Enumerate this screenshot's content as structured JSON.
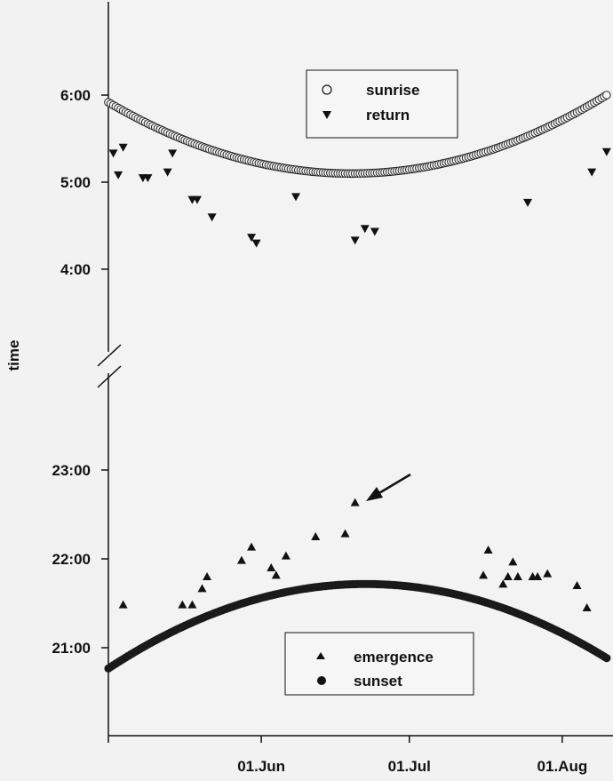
{
  "chart_data": {
    "type": "scatter",
    "ylabel": "time",
    "x_ticks": [
      "01.Jun",
      "01.Jul",
      "01.Aug"
    ],
    "y_ticks_morning": [
      "4:00",
      "5:00",
      "6:00"
    ],
    "y_ticks_evening": [
      "21:00",
      "22:00",
      "23:00"
    ],
    "y_axis_break": true,
    "xlim": [
      "2003-05-01",
      "2003-08-10"
    ],
    "ylim_morning": [
      "3:00",
      "7:00"
    ],
    "ylim_evening": [
      "20:00",
      "24:00"
    ],
    "legends": [
      {
        "position": "top-center",
        "entries": [
          "sunrise",
          "return"
        ]
      },
      {
        "position": "bottom-center",
        "entries": [
          "emergence",
          "sunset"
        ]
      }
    ],
    "annotation": "arrow pointing to emergence point on 2003-06-20",
    "series": [
      {
        "name": "sunrise",
        "marker": "open-circle",
        "curve": true,
        "anchors": [
          {
            "date": "2003-05-01",
            "time": "5:55"
          },
          {
            "date": "2003-06-21",
            "time": "5:06"
          },
          {
            "date": "2003-08-10",
            "time": "6:00"
          }
        ]
      },
      {
        "name": "return",
        "marker": "down-triangle",
        "points": [
          [
            "2003-05-02",
            "5:20"
          ],
          [
            "2003-05-03",
            "5:05"
          ],
          [
            "2003-05-04",
            "5:24"
          ],
          [
            "2003-05-08",
            "5:03"
          ],
          [
            "2003-05-09",
            "5:03"
          ],
          [
            "2003-05-13",
            "5:07"
          ],
          [
            "2003-05-14",
            "5:20"
          ],
          [
            "2003-05-18",
            "4:48"
          ],
          [
            "2003-05-19",
            "4:48"
          ],
          [
            "2003-05-22",
            "4:36"
          ],
          [
            "2003-05-30",
            "4:22"
          ],
          [
            "2003-05-31",
            "4:18"
          ],
          [
            "2003-06-08",
            "4:50"
          ],
          [
            "2003-06-20",
            "4:20"
          ],
          [
            "2003-06-22",
            "4:28"
          ],
          [
            "2003-06-24",
            "4:26"
          ],
          [
            "2003-07-25",
            "4:46"
          ],
          [
            "2003-08-07",
            "5:07"
          ],
          [
            "2003-08-10",
            "5:21"
          ]
        ]
      },
      {
        "name": "emergence",
        "marker": "up-triangle",
        "points": [
          [
            "2003-05-04",
            "21:29"
          ],
          [
            "2003-05-16",
            "21:29"
          ],
          [
            "2003-05-18",
            "21:29"
          ],
          [
            "2003-05-20",
            "21:40"
          ],
          [
            "2003-05-21",
            "21:48"
          ],
          [
            "2003-05-28",
            "21:59"
          ],
          [
            "2003-05-30",
            "22:08"
          ],
          [
            "2003-06-03",
            "21:54"
          ],
          [
            "2003-06-04",
            "21:49"
          ],
          [
            "2003-06-06",
            "22:02"
          ],
          [
            "2003-06-12",
            "22:15"
          ],
          [
            "2003-06-18",
            "22:17"
          ],
          [
            "2003-06-20",
            "22:38"
          ],
          [
            "2003-07-16",
            "21:49"
          ],
          [
            "2003-07-17",
            "22:06"
          ],
          [
            "2003-07-20",
            "21:43"
          ],
          [
            "2003-07-21",
            "21:48"
          ],
          [
            "2003-07-22",
            "21:58"
          ],
          [
            "2003-07-23",
            "21:48"
          ],
          [
            "2003-07-26",
            "21:48"
          ],
          [
            "2003-07-27",
            "21:48"
          ],
          [
            "2003-07-29",
            "21:50"
          ],
          [
            "2003-08-04",
            "21:42"
          ],
          [
            "2003-08-06",
            "21:27"
          ]
        ]
      },
      {
        "name": "sunset",
        "marker": "filled-circle",
        "curve": true,
        "anchors": [
          {
            "date": "2003-05-01",
            "time": "20:46"
          },
          {
            "date": "2003-06-21",
            "time": "21:43"
          },
          {
            "date": "2003-08-10",
            "time": "20:53"
          }
        ]
      }
    ]
  }
}
